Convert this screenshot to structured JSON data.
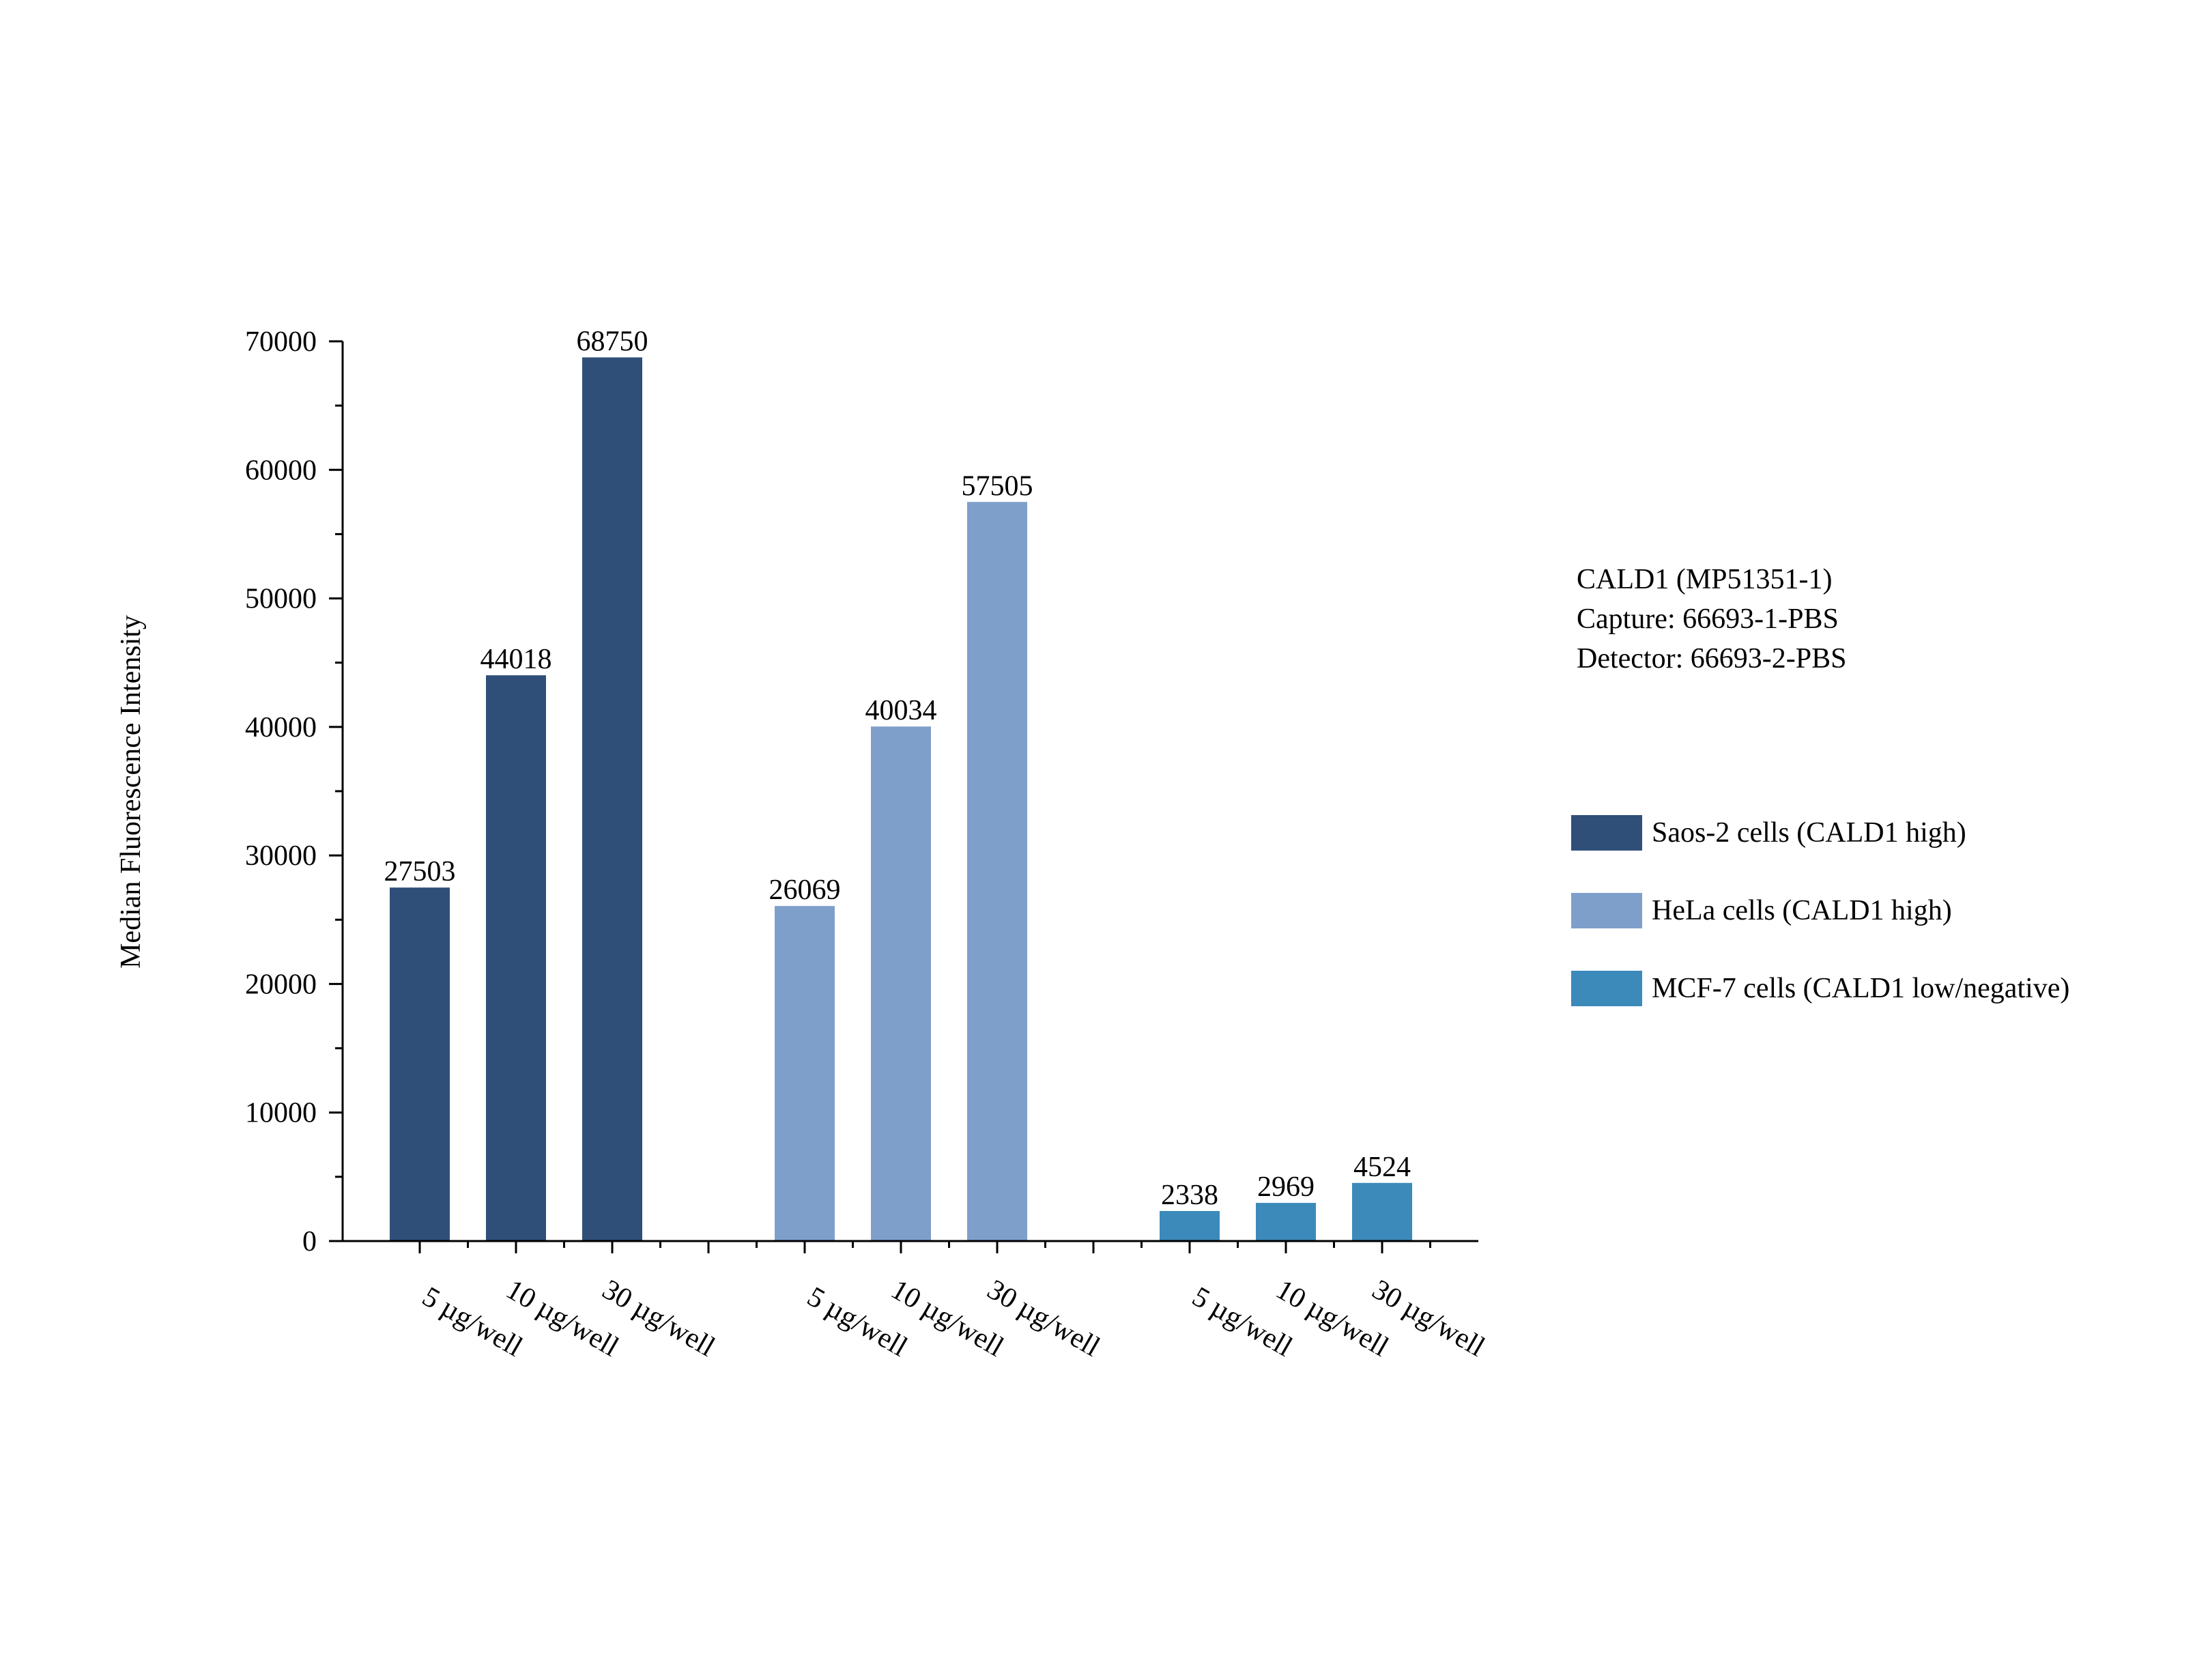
{
  "chart_data": {
    "type": "bar",
    "ylabel": "Median Fluorescence Intensity",
    "xlabel": "",
    "ylim": [
      0,
      70000
    ],
    "yticks": [
      0,
      10000,
      20000,
      30000,
      40000,
      50000,
      60000,
      70000
    ],
    "grid": false,
    "legend_position": "right",
    "categories": [
      "5 µg/well",
      "10 µg/well",
      "30 µg/well"
    ],
    "series": [
      {
        "name": "Saos-2 cells (CALD1 high)",
        "color": "#2f4f79",
        "values": [
          27503,
          44018,
          68750
        ]
      },
      {
        "name": "HeLa cells (CALD1 high)",
        "color": "#7f9fcb",
        "values": [
          26069,
          40034,
          57505
        ]
      },
      {
        "name": "MCF-7 cells (CALD1 low/negative)",
        "color": "#3b8aba",
        "values": [
          2338,
          2969,
          4524
        ]
      }
    ]
  },
  "info_lines": [
    "CALD1 (MP51351-1)",
    "Capture: 66693-1-PBS",
    "Detector: 66693-2-PBS"
  ]
}
